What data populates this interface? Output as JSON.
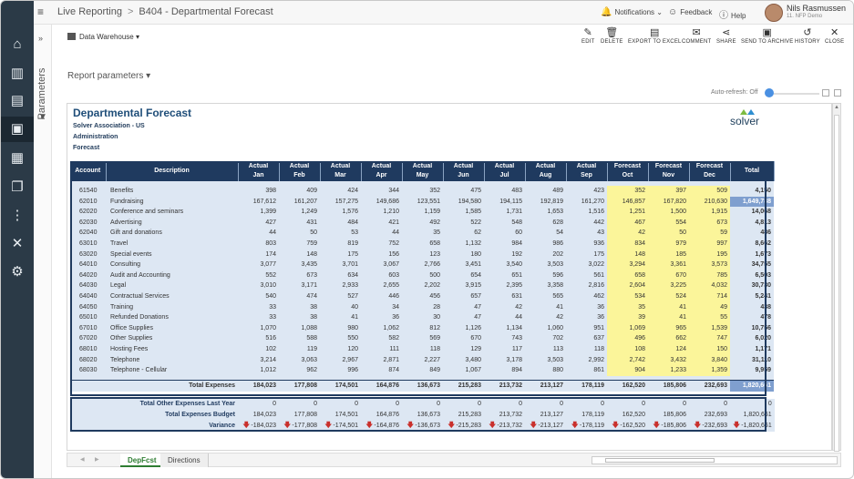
{
  "topbar": {
    "breadcrumb_root": "Live Reporting",
    "breadcrumb_sep": ">",
    "breadcrumb_page": "B404 - Departmental Forecast",
    "notifications": "Notifications",
    "feedback": "Feedback",
    "help": "Help",
    "user_name": "Nils Rasmussen",
    "user_sub": "11. NFP Demo"
  },
  "parameters_panel": {
    "label": "Parameters"
  },
  "toolbar": {
    "datasource": "Data Warehouse",
    "edit": "EDIT",
    "delete": "DELETE",
    "export": "EXPORT TO EXCEL",
    "comment": "COMMENT",
    "share": "SHARE",
    "archive": "SEND TO ARCHIVE",
    "history": "HISTORY",
    "close": "CLOSE"
  },
  "report_params": "Report parameters",
  "auto_refresh": "Auto-refresh: Off",
  "report": {
    "title": "Departmental Forecast",
    "entity": "Solver Association - US",
    "department": "Administration",
    "scenario": "Forecast",
    "logo": "solver",
    "headers": [
      [
        "Account",
        ""
      ],
      [
        "Description",
        ""
      ],
      [
        "Actual",
        "Jan"
      ],
      [
        "Actual",
        "Feb"
      ],
      [
        "Actual",
        "Mar"
      ],
      [
        "Actual",
        "Apr"
      ],
      [
        "Actual",
        "May"
      ],
      [
        "Actual",
        "Jun"
      ],
      [
        "Actual",
        "Jul"
      ],
      [
        "Actual",
        "Aug"
      ],
      [
        "Actual",
        "Sep"
      ],
      [
        "Forecast",
        "Oct"
      ],
      [
        "Forecast",
        "Nov"
      ],
      [
        "Forecast",
        "Dec"
      ],
      [
        "Total",
        ""
      ]
    ],
    "rows": [
      [
        "61540",
        "Benefits",
        "398",
        "409",
        "424",
        "344",
        "352",
        "475",
        "483",
        "489",
        "423",
        "352",
        "397",
        "509",
        "4,150"
      ],
      [
        "62010",
        "Fundraising",
        "167,612",
        "161,207",
        "157,275",
        "149,686",
        "123,551",
        "194,580",
        "194,115",
        "192,819",
        "161,270",
        "146,857",
        "167,820",
        "210,630",
        "1,649,788"
      ],
      [
        "62020",
        "Conference and seminars",
        "1,399",
        "1,249",
        "1,576",
        "1,210",
        "1,159",
        "1,585",
        "1,731",
        "1,653",
        "1,516",
        "1,251",
        "1,500",
        "1,915",
        "14,068"
      ],
      [
        "62030",
        "Advertising",
        "427",
        "431",
        "484",
        "421",
        "492",
        "522",
        "548",
        "628",
        "442",
        "467",
        "554",
        "673",
        "4,813"
      ],
      [
        "62040",
        "Gift and donations",
        "44",
        "50",
        "53",
        "44",
        "35",
        "62",
        "60",
        "54",
        "43",
        "42",
        "50",
        "59",
        "486"
      ],
      [
        "63010",
        "Travel",
        "803",
        "759",
        "819",
        "752",
        "658",
        "1,132",
        "984",
        "986",
        "936",
        "834",
        "979",
        "997",
        "8,662"
      ],
      [
        "63020",
        "Special events",
        "174",
        "148",
        "175",
        "156",
        "123",
        "180",
        "192",
        "202",
        "175",
        "148",
        "185",
        "195",
        "1,673"
      ],
      [
        "64010",
        "Consulting",
        "3,077",
        "3,435",
        "3,701",
        "3,067",
        "2,766",
        "3,451",
        "3,540",
        "3,503",
        "3,022",
        "3,294",
        "3,361",
        "3,573",
        "34,755"
      ],
      [
        "64020",
        "Audit and Accounting",
        "552",
        "673",
        "634",
        "603",
        "500",
        "654",
        "651",
        "596",
        "561",
        "658",
        "670",
        "785",
        "6,503"
      ],
      [
        "64030",
        "Legal",
        "3,010",
        "3,171",
        "2,933",
        "2,655",
        "2,202",
        "3,915",
        "2,395",
        "3,358",
        "2,816",
        "2,604",
        "3,225",
        "4,032",
        "30,730"
      ],
      [
        "64040",
        "Contractual Services",
        "540",
        "474",
        "527",
        "446",
        "456",
        "657",
        "631",
        "565",
        "462",
        "534",
        "524",
        "714",
        "5,241"
      ],
      [
        "64050",
        "Training",
        "33",
        "38",
        "40",
        "34",
        "28",
        "47",
        "42",
        "41",
        "36",
        "35",
        "41",
        "49",
        "438"
      ],
      [
        "65010",
        "Refunded Donations",
        "33",
        "38",
        "41",
        "36",
        "30",
        "47",
        "44",
        "42",
        "36",
        "39",
        "41",
        "55",
        "478"
      ],
      [
        "67010",
        "Office Supplies",
        "1,070",
        "1,088",
        "980",
        "1,062",
        "812",
        "1,126",
        "1,134",
        "1,060",
        "951",
        "1,069",
        "965",
        "1,539",
        "10,756"
      ],
      [
        "67020",
        "Other Supplies",
        "516",
        "588",
        "550",
        "582",
        "569",
        "670",
        "743",
        "702",
        "637",
        "496",
        "662",
        "747",
        "6,020"
      ],
      [
        "68010",
        "Hosting Fees",
        "102",
        "119",
        "120",
        "111",
        "118",
        "129",
        "117",
        "113",
        "118",
        "108",
        "124",
        "150",
        "1,171"
      ],
      [
        "68020",
        "Telephone",
        "3,214",
        "3,063",
        "2,967",
        "2,871",
        "2,227",
        "3,480",
        "3,178",
        "3,503",
        "2,992",
        "2,742",
        "3,432",
        "3,840",
        "31,110"
      ],
      [
        "68030",
        "Telephone - Cellular",
        "1,012",
        "962",
        "996",
        "874",
        "849",
        "1,067",
        "894",
        "880",
        "861",
        "904",
        "1,233",
        "1,359",
        "9,959"
      ]
    ],
    "total_row": [
      "",
      "Total Expenses",
      "184,023",
      "177,808",
      "174,501",
      "164,876",
      "136,673",
      "215,283",
      "213,732",
      "213,127",
      "178,119",
      "162,520",
      "185,806",
      "232,693",
      "1,820,661"
    ],
    "summary": [
      [
        "Total Other Expenses Last Year",
        "0",
        "0",
        "0",
        "0",
        "0",
        "0",
        "0",
        "0",
        "0",
        "0",
        "0",
        "0",
        "0"
      ],
      [
        "Total Expenses Budget",
        "184,023",
        "177,808",
        "174,501",
        "164,876",
        "136,673",
        "215,283",
        "213,732",
        "213,127",
        "178,119",
        "162,520",
        "185,806",
        "232,693",
        "1,820,661"
      ],
      [
        "Variance",
        "-184,023",
        "-177,808",
        "-174,501",
        "-164,876",
        "-136,673",
        "-215,283",
        "-213,732",
        "-213,127",
        "-178,119",
        "-162,520",
        "-185,806",
        "-232,693",
        "-1,820,661"
      ]
    ]
  },
  "sheets": [
    "DepFcst",
    "Directions"
  ]
}
